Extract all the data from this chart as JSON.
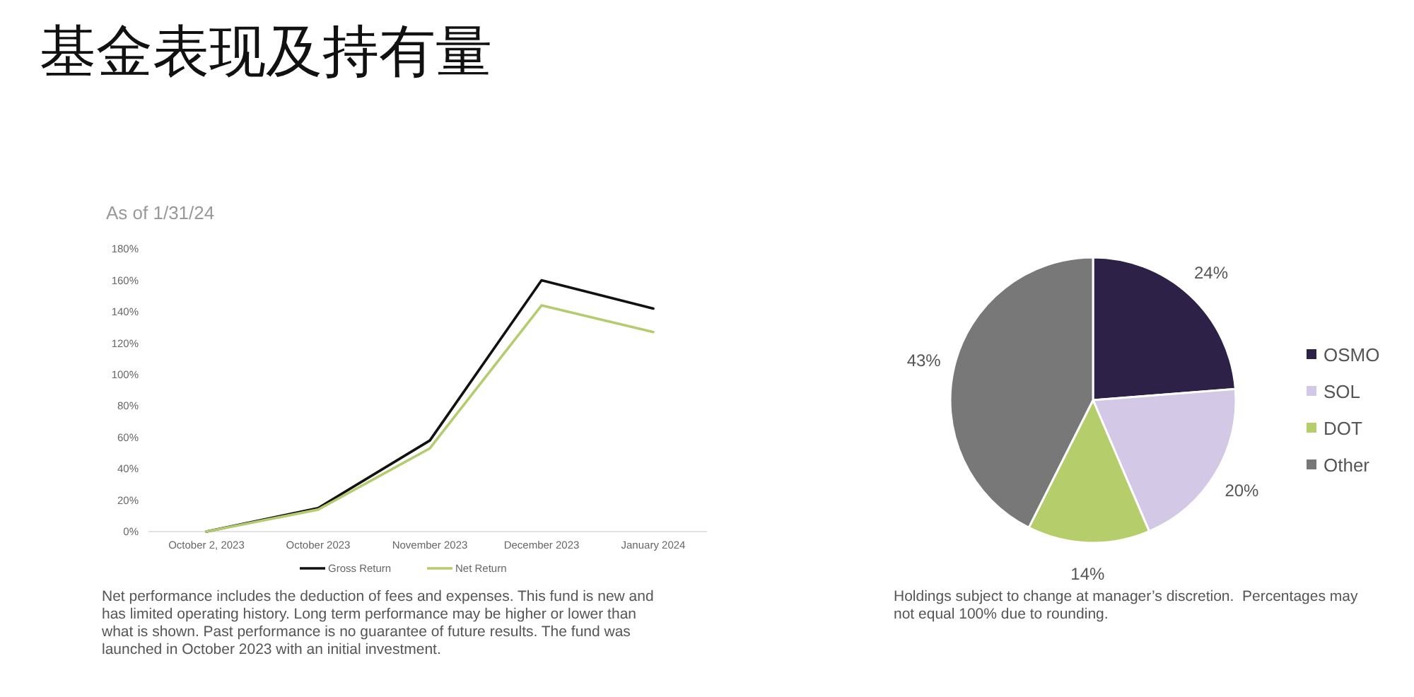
{
  "chart_data": [
    {
      "type": "line",
      "title": "基金表现及持有量",
      "subtitle": "As of 1/31/24",
      "categories": [
        "October 2, 2023",
        "October 2023",
        "November 2023",
        "December 2023",
        "January 2024"
      ],
      "series": [
        {
          "name": "Gross Return",
          "color": "#111111",
          "values": [
            0,
            15,
            58,
            160,
            142
          ]
        },
        {
          "name": "Net Return",
          "color": "#b3cc6e",
          "values": [
            0,
            14,
            53,
            144,
            127
          ]
        }
      ],
      "ylim": [
        0,
        180
      ],
      "yticks": [
        {
          "value": 0,
          "label": "0%"
        },
        {
          "value": 20,
          "label": "20%"
        },
        {
          "value": 40,
          "label": "40%"
        },
        {
          "value": 60,
          "label": "60%"
        },
        {
          "value": 80,
          "label": "80%"
        },
        {
          "value": 100,
          "label": "100%"
        },
        {
          "value": 120,
          "label": "120%"
        },
        {
          "value": 140,
          "label": "140%"
        },
        {
          "value": 160,
          "label": "160%"
        },
        {
          "value": 180,
          "label": "180%"
        }
      ],
      "legend": "bottom",
      "line_style": "solid",
      "annotations": [
        "Net performance includes the deduction of fees and expenses. This fund is new and has limited operating history. Long term performance may be higher or lower than what is shown. Past performance is no guarantee of future results. The fund was launched in October 2023 with an initial investment."
      ]
    },
    {
      "type": "pie",
      "categories": [
        "OSMO",
        "SOL",
        "DOT",
        "Other"
      ],
      "values": [
        24,
        20,
        14,
        43
      ],
      "colors": [
        "#2d2148",
        "#d3c9e6",
        "#b5cd6a",
        "#787878"
      ],
      "value_labels": [
        "24%",
        "20%",
        "14%",
        "43%"
      ],
      "legend": "right",
      "annotations": [
        "Holdings subject to change at manager’s discretion.  Percentages may not equal 100% due to rounding."
      ]
    }
  ]
}
